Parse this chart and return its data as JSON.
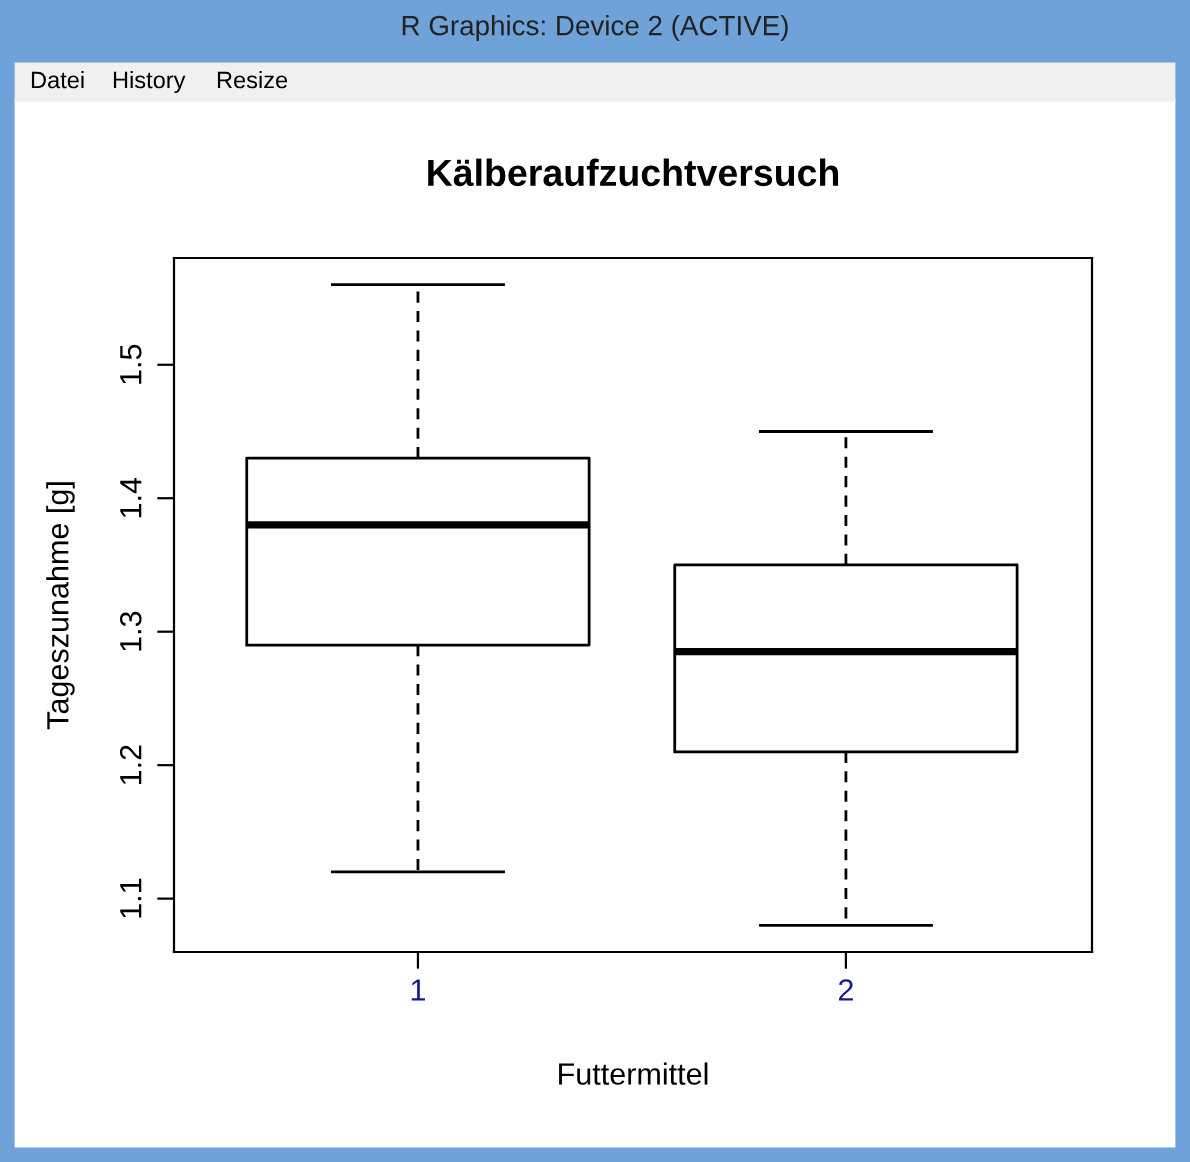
{
  "chart_data": {
    "type": "box",
    "title": "Kälberaufzuchtversuch",
    "xlabel": "Futtermittel",
    "ylabel": "Tageszunahme [g]",
    "categories": [
      "1",
      "2"
    ],
    "boxes": [
      {
        "low": 1.12,
        "q1": 1.29,
        "median": 1.38,
        "q3": 1.43,
        "high": 1.56
      },
      {
        "low": 1.08,
        "q1": 1.21,
        "median": 1.285,
        "q3": 1.35,
        "high": 1.45
      }
    ],
    "ylim": [
      1.06,
      1.58
    ],
    "yticks": [
      1.1,
      1.2,
      1.3,
      1.4,
      1.5
    ],
    "grid": false,
    "legend": false,
    "annotations": [
      "R Graphics: Device 2 (ACTIVE)",
      "Datei",
      "History",
      "Resize"
    ]
  }
}
